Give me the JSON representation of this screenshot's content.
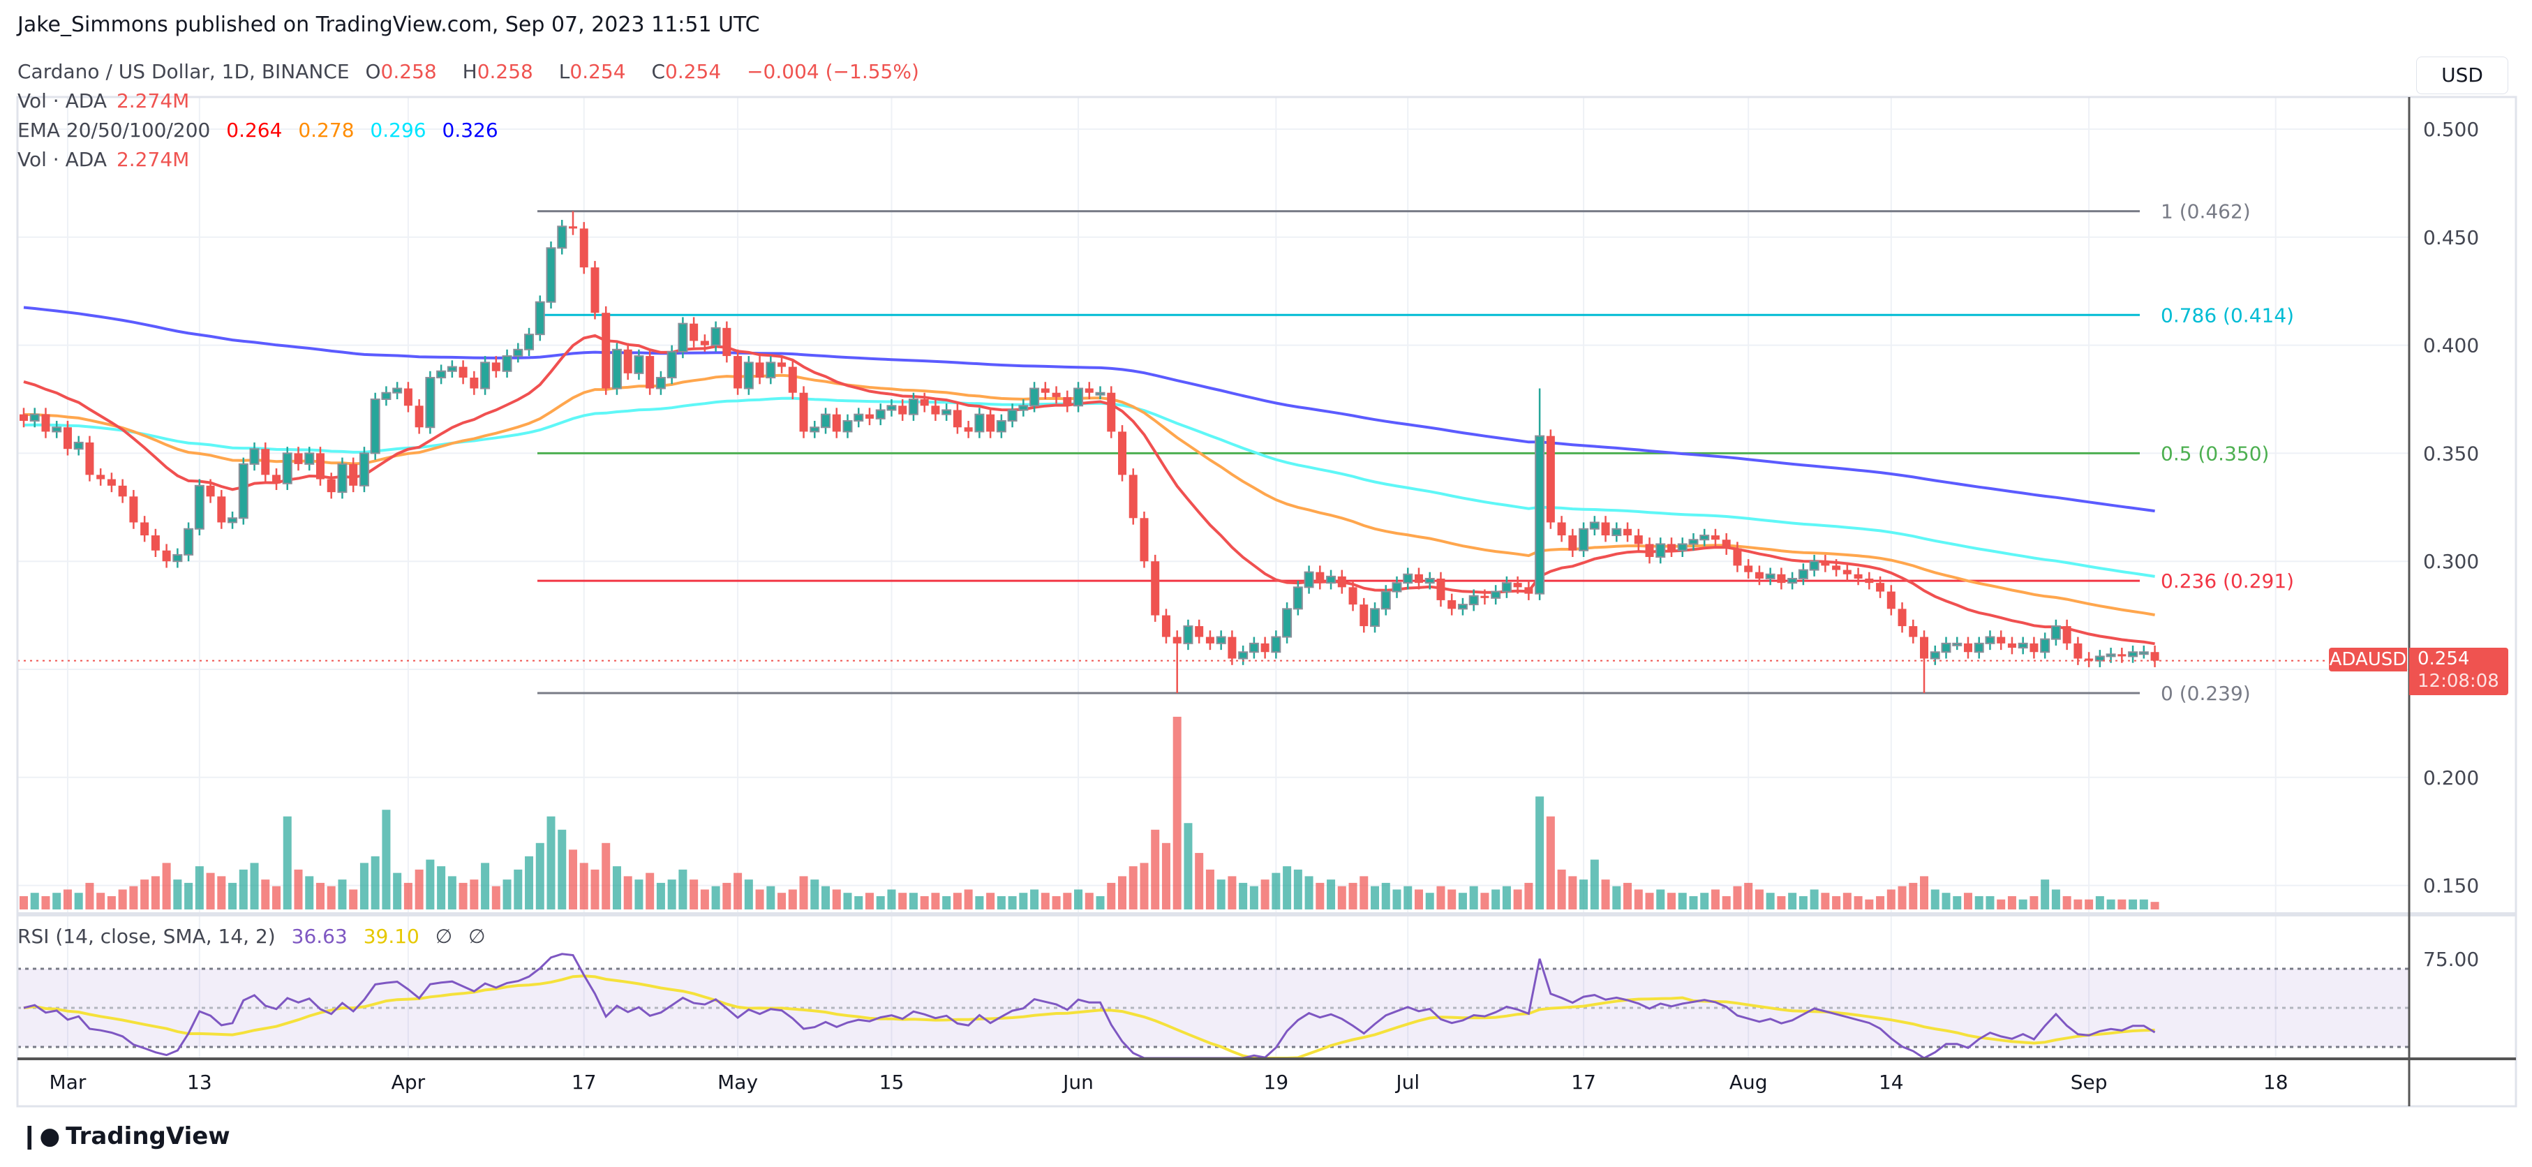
{
  "header": {
    "published": "Jake_Simmons published on TradingView.com, Sep 07, 2023 11:51 UTC"
  },
  "legend": {
    "symbol": "Cardano / US Dollar, 1D, BINANCE",
    "o_label": "O",
    "o": "0.258",
    "h_label": "H",
    "h": "0.258",
    "l_label": "L",
    "l": "0.254",
    "c_label": "C",
    "c": "0.254",
    "change": "−0.004 (−1.55%)",
    "vol_label": "Vol · ADA",
    "vol": "2.274M",
    "ema_label": "EMA 20/50/100/200",
    "ema20": "0.264",
    "ema50": "0.278",
    "ema100": "0.296",
    "ema200": "0.326",
    "vol2_label": "Vol · ADA",
    "vol2": "2.274M"
  },
  "rsi_legend": {
    "label": "RSI (14, close, SMA, 14, 2)",
    "rsi": "36.63",
    "sma": "39.10",
    "empty1": "∅",
    "empty2": "∅"
  },
  "currency_button": "USD",
  "price_axis": [
    "0.500",
    "0.450",
    "0.400",
    "0.350",
    "0.300",
    "0.200",
    "0.150"
  ],
  "rsi_axis": "75.00",
  "last_price": {
    "symbol": "ADAUSD",
    "price": "0.254",
    "countdown": "12:08:08"
  },
  "time_axis": [
    {
      "label": "Mar",
      "date": "2023-03-01"
    },
    {
      "label": "13",
      "date": "2023-03-13"
    },
    {
      "label": "Apr",
      "date": "2023-04-01"
    },
    {
      "label": "17",
      "date": "2023-04-17"
    },
    {
      "label": "May",
      "date": "2023-05-01"
    },
    {
      "label": "15",
      "date": "2023-05-15"
    },
    {
      "label": "Jun",
      "date": "2023-06-01"
    },
    {
      "label": "19",
      "date": "2023-06-19"
    },
    {
      "label": "Jul",
      "date": "2023-07-01"
    },
    {
      "label": "17",
      "date": "2023-07-17"
    },
    {
      "label": "Aug",
      "date": "2023-08-01"
    },
    {
      "label": "14",
      "date": "2023-08-14"
    },
    {
      "label": "Sep",
      "date": "2023-09-01"
    },
    {
      "label": "18",
      "date": "2023-09-18"
    }
  ],
  "footer": {
    "brand": "TradingView",
    "logo": "TV"
  },
  "colors": {
    "up": "#26a69a",
    "down": "#ef5350",
    "ema20": "#f23645",
    "ema50": "#ff9800",
    "ema100": "#00e5ff",
    "ema200": "#0000ff",
    "rsi": "#7e57c2",
    "rsi_sma": "#f5e13b"
  },
  "chart_data": {
    "type": "candlestick",
    "title": "Cardano / US Dollar, 1D, BINANCE",
    "ylabel": "USD",
    "ylim": [
      0.13,
      0.52
    ],
    "grid": true,
    "candles_by_month": [
      {
        "month": "2023-02",
        "start_day": 25,
        "close": [
          0.365,
          0.368,
          0.36,
          0.362
        ],
        "volume_M": [
          4,
          5,
          4,
          5
        ]
      },
      {
        "month": "2023-03",
        "start_day": 1,
        "close": [
          0.352,
          0.355,
          0.34,
          0.338,
          0.335,
          0.33,
          0.318,
          0.312,
          0.305,
          0.3,
          0.303,
          0.315,
          0.335,
          0.33,
          0.318,
          0.32,
          0.345,
          0.352,
          0.34,
          0.336,
          0.35,
          0.345,
          0.35,
          0.338,
          0.332,
          0.345,
          0.335,
          0.35,
          0.375,
          0.378,
          0.38
        ],
        "volume_M": [
          6,
          5,
          8,
          5,
          4,
          6,
          7,
          9,
          10,
          14,
          9,
          8,
          13,
          11,
          10,
          8,
          12,
          14,
          9,
          7,
          28,
          12,
          10,
          8,
          7,
          9,
          6,
          14,
          16,
          30,
          11
        ]
      },
      {
        "month": "2023-04",
        "start_day": 1,
        "close": [
          0.372,
          0.362,
          0.385,
          0.388,
          0.39,
          0.385,
          0.38,
          0.392,
          0.388,
          0.395,
          0.398,
          0.405,
          0.42,
          0.445,
          0.455,
          0.454,
          0.436,
          0.415,
          0.38,
          0.398,
          0.387,
          0.395,
          0.38,
          0.385,
          0.397,
          0.41,
          0.402,
          0.4,
          0.408,
          0.395
        ],
        "volume_M": [
          8,
          12,
          15,
          13,
          10,
          8,
          9,
          14,
          7,
          9,
          12,
          16,
          20,
          28,
          24,
          18,
          14,
          12,
          20,
          13,
          10,
          9,
          11,
          8,
          9,
          12,
          9,
          6,
          7,
          8
        ]
      },
      {
        "month": "2023-05",
        "start_day": 1,
        "close": [
          0.38,
          0.392,
          0.385,
          0.392,
          0.39,
          0.378,
          0.36,
          0.362,
          0.368,
          0.36,
          0.365,
          0.368,
          0.366,
          0.37,
          0.372,
          0.368,
          0.375,
          0.372,
          0.368,
          0.37,
          0.362,
          0.36,
          0.368,
          0.36,
          0.365,
          0.37,
          0.372,
          0.38,
          0.378,
          0.376,
          0.372
        ],
        "volume_M": [
          11,
          9,
          6,
          7,
          5,
          6,
          10,
          9,
          7,
          6,
          5,
          4,
          5,
          4,
          6,
          5,
          5,
          4,
          5,
          4,
          5,
          6,
          4,
          5,
          4,
          4,
          5,
          6,
          5,
          4,
          5
        ]
      },
      {
        "month": "2023-06",
        "start_day": 1,
        "close": [
          0.38,
          0.378,
          0.378,
          0.36,
          0.34,
          0.32,
          0.3,
          0.275,
          0.265,
          0.262,
          0.27,
          0.265,
          0.262,
          0.265,
          0.255,
          0.258,
          0.262,
          0.258,
          0.265,
          0.278,
          0.288,
          0.295,
          0.29,
          0.293,
          0.288,
          0.28,
          0.27,
          0.278,
          0.286,
          0.29
        ],
        "volume_M": [
          6,
          5,
          4,
          8,
          10,
          13,
          14,
          24,
          20,
          58,
          26,
          17,
          12,
          9,
          10,
          8,
          7,
          9,
          11,
          13,
          12,
          10,
          8,
          9,
          7,
          8,
          10,
          7,
          8,
          6
        ]
      },
      {
        "month": "2023-07",
        "start_day": 1,
        "close": [
          0.294,
          0.29,
          0.292,
          0.282,
          0.278,
          0.28,
          0.284,
          0.283,
          0.286,
          0.29,
          0.288,
          0.285,
          0.358,
          0.318,
          0.312,
          0.305,
          0.315,
          0.318,
          0.312,
          0.315,
          0.312,
          0.308,
          0.302,
          0.308,
          0.305,
          0.308,
          0.31,
          0.312,
          0.31,
          0.306,
          0.298
        ],
        "volume_M": [
          7,
          6,
          5,
          7,
          6,
          5,
          7,
          5,
          6,
          7,
          6,
          8,
          34,
          28,
          12,
          10,
          9,
          15,
          9,
          7,
          8,
          6,
          5,
          6,
          5,
          5,
          4,
          5,
          6,
          4,
          7
        ]
      },
      {
        "month": "2023-08",
        "start_day": 1,
        "close": [
          0.295,
          0.292,
          0.294,
          0.29,
          0.292,
          0.296,
          0.3,
          0.298,
          0.296,
          0.294,
          0.292,
          0.29,
          0.286,
          0.278,
          0.27,
          0.265,
          0.255,
          0.258,
          0.262,
          0.262,
          0.258,
          0.262,
          0.265,
          0.262,
          0.26,
          0.262,
          0.258,
          0.264,
          0.27,
          0.262,
          0.255
        ],
        "volume_M": [
          8,
          6,
          5,
          4,
          5,
          4,
          6,
          5,
          4,
          5,
          4,
          3,
          4,
          6,
          7,
          8,
          10,
          6,
          5,
          4,
          5,
          4,
          4,
          3,
          4,
          3,
          4,
          9,
          6,
          4,
          3
        ]
      },
      {
        "month": "2023-09",
        "start_day": 1,
        "close": [
          0.254,
          0.256,
          0.257,
          0.256,
          0.258,
          0.258,
          0.254
        ],
        "volume_M": [
          3,
          4,
          3,
          3,
          3,
          3,
          2.274
        ]
      }
    ],
    "wick_extremes": [
      {
        "date": "2023-04-16",
        "high": 0.462
      },
      {
        "date": "2023-06-10",
        "low": 0.239
      },
      {
        "date": "2023-07-13",
        "high": 0.38
      },
      {
        "date": "2023-08-17",
        "low": 0.239
      }
    ],
    "ema_start": {
      "ema20": 0.385,
      "ema50": 0.368,
      "ema100": 0.363,
      "ema200": 0.418
    },
    "fib_levels": [
      {
        "ratio": "1",
        "price": 0.462,
        "label": "1 (0.462)",
        "color": "#787b86"
      },
      {
        "ratio": "0.786",
        "price": 0.414,
        "label": "0.786 (0.414)",
        "color": "#00bcd4"
      },
      {
        "ratio": "0.5",
        "price": 0.35,
        "label": "0.5 (0.350)",
        "color": "#4caf50"
      },
      {
        "ratio": "0.236",
        "price": 0.291,
        "label": "0.236 (0.291)",
        "color": "#f23645"
      },
      {
        "ratio": "0",
        "price": 0.239,
        "label": "0 (0.239)",
        "color": "#787b86"
      }
    ],
    "rsi": {
      "period": 14,
      "sma": 14,
      "bands": [
        70,
        50,
        30
      ]
    }
  }
}
